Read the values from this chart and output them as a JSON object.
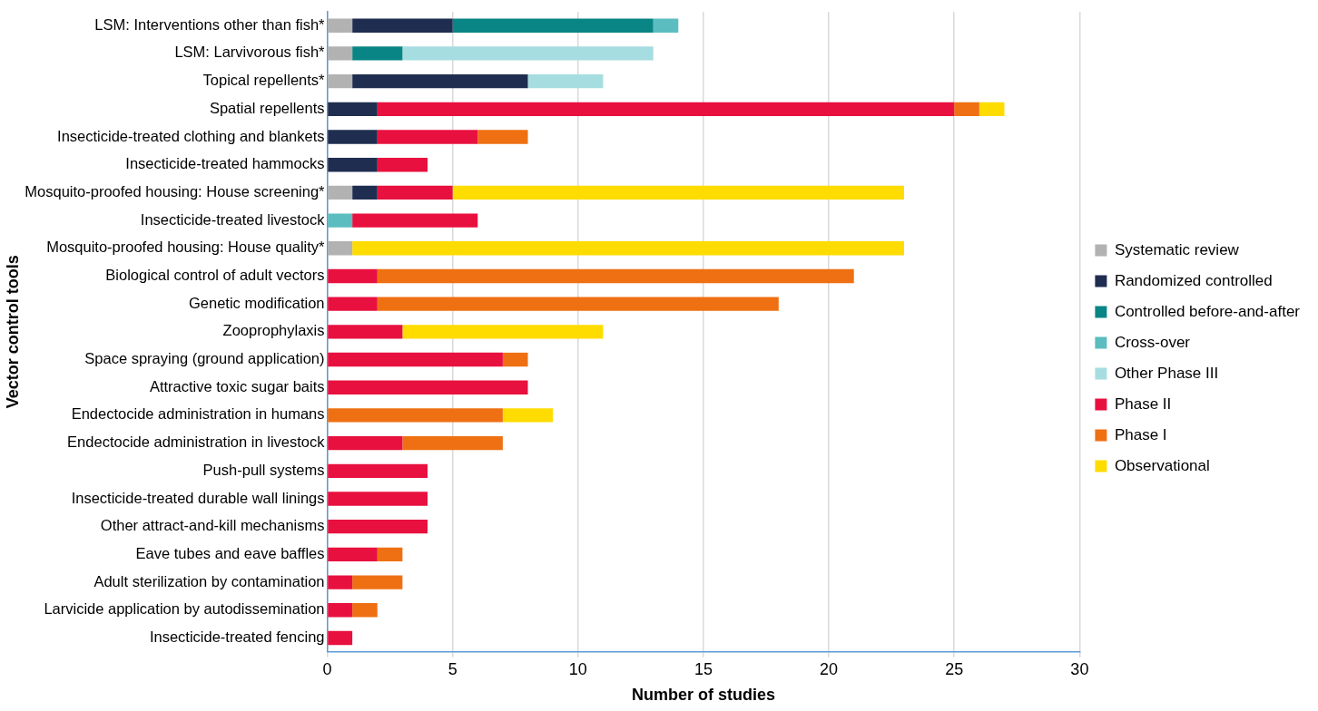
{
  "chart_data": {
    "type": "bar",
    "orientation": "horizontal",
    "stacked": true,
    "xlabel": "Number of studies",
    "ylabel": "Vector control tools",
    "categories": [
      "LSM: Interventions other than fish*",
      "LSM: Larvivorous fish*",
      "Topical repellents*",
      "Spatial repellents",
      "Insecticide-treated clothing and blankets",
      "Insecticide-treated hammocks",
      "Mosquito-proofed housing: House screening*",
      "Insecticide-treated livestock",
      "Mosquito-proofed housing: House quality*",
      "Biological control of adult vectors",
      "Genetic modification",
      "Zooprophylaxis",
      "Space spraying (ground application)",
      "Attractive toxic sugar baits",
      "Endectocide administration in humans",
      "Endectocide administration in livestock",
      "Push-pull systems",
      "Insecticide-treated durable wall linings",
      "Other attract-and-kill mechanisms",
      "Eave tubes and eave baffles",
      "Adult sterilization by contamination",
      "Larvicide application by autodissemination",
      "Insecticide-treated fencing"
    ],
    "series": [
      {
        "name": "Systematic review",
        "color": "#b2b2b2",
        "values": [
          1,
          1,
          1,
          0,
          0,
          0,
          1,
          0,
          1,
          0,
          0,
          0,
          0,
          0,
          0,
          0,
          0,
          0,
          0,
          0,
          0,
          0,
          0
        ]
      },
      {
        "name": "Randomized controlled",
        "color": "#1f2d50",
        "values": [
          4,
          0,
          7,
          2,
          2,
          2,
          1,
          0,
          0,
          0,
          0,
          0,
          0,
          0,
          0,
          0,
          0,
          0,
          0,
          0,
          0,
          0,
          0
        ]
      },
      {
        "name": "Controlled before-and-after",
        "color": "#0a8585",
        "values": [
          8,
          2,
          0,
          0,
          0,
          0,
          0,
          0,
          0,
          0,
          0,
          0,
          0,
          0,
          0,
          0,
          0,
          0,
          0,
          0,
          0,
          0,
          0
        ]
      },
      {
        "name": "Cross-over",
        "color": "#5bbdc0",
        "values": [
          1,
          0,
          0,
          0,
          0,
          0,
          0,
          1,
          0,
          0,
          0,
          0,
          0,
          0,
          0,
          0,
          0,
          0,
          0,
          0,
          0,
          0,
          0
        ]
      },
      {
        "name": "Other Phase III",
        "color": "#a6dde0",
        "values": [
          0,
          10,
          3,
          0,
          0,
          0,
          0,
          0,
          0,
          0,
          0,
          0,
          0,
          0,
          0,
          0,
          0,
          0,
          0,
          0,
          0,
          0,
          0
        ]
      },
      {
        "name": "Phase II",
        "color": "#e8103f",
        "values": [
          0,
          0,
          0,
          23,
          4,
          2,
          3,
          5,
          0,
          2,
          2,
          3,
          7,
          8,
          0,
          3,
          4,
          4,
          4,
          2,
          1,
          1,
          1
        ]
      },
      {
        "name": "Phase I",
        "color": "#ef7012",
        "values": [
          0,
          0,
          0,
          1,
          2,
          0,
          0,
          0,
          0,
          19,
          16,
          0,
          1,
          0,
          7,
          4,
          0,
          0,
          0,
          1,
          2,
          1,
          0
        ]
      },
      {
        "name": "Observational",
        "color": "#ffdc00",
        "values": [
          0,
          0,
          0,
          1,
          0,
          0,
          18,
          0,
          22,
          0,
          0,
          8,
          0,
          0,
          2,
          0,
          0,
          0,
          0,
          0,
          0,
          0,
          0
        ]
      }
    ],
    "xlim": [
      0,
      30
    ],
    "xticks": [
      0,
      5,
      10,
      15,
      20,
      25,
      30
    ],
    "grid": "x",
    "legend": "right"
  }
}
